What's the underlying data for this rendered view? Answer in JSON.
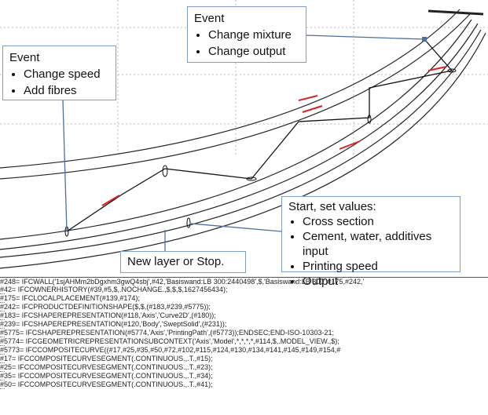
{
  "event_left": {
    "title": "Event",
    "items": [
      "Change speed",
      "Add fibres"
    ]
  },
  "event_top": {
    "title": "Event",
    "items": [
      "Change mixture",
      "Change output"
    ]
  },
  "start": {
    "title": "Start, set values:",
    "items": [
      "Cross section",
      "Cement, water, additives input",
      "Printing speed",
      "Output"
    ]
  },
  "new_layer": {
    "label": "New layer or Stop."
  },
  "code": {
    "lines": [
      "#248= IFCWALL('1sjAHMm2bDgxhm3gwQ4sbj',#42,'Basiswand:LB 300:2440498',$,'Basiswand:LB 300',#175,#242,'",
      "#42= IFCOWNERHISTORY(#39,#5,$,.NOCHANGE.,$,$,$,1627456434);",
      "#175= IFCLOCALPLACEMENT(#139,#174);",
      "#242= IFCPRODUCTDEFINITIONSHAPE($,$,(#183,#239,#5775));",
      "#183= IFCSHAPEREPRESENTATION(#118,'Axis','Curve2D',(#180));",
      "#239= IFCSHAPEREPRESENTATION(#120,'Body','SweptSolid',(#231));",
      "#5775= IFCSHAPEREPRESENTATION(#5774,'Axis','PrintingPath',(#5773));ENDSEC;END-ISO-10303-21;",
      "#5774= IFCGEOMETRICREPRESENTATIONSUBCONTEXT('Axis','Model',*,*,*,*,#114,$,.MODEL_VIEW.,$);",
      "#5773= IFCCOMPOSITECURVE((#17,#25,#35,#50,#72,#102,#115,#124,#130,#134,#141,#145,#149,#154,#",
      "#17= IFCCOMPOSITECURVESEGMENT(.CONTINUOUS.,.T.,#15);",
      "#25= IFCCOMPOSITECURVESEGMENT(.CONTINUOUS.,.T.,#23);",
      "#35= IFCCOMPOSITECURVESEGMENT(.CONTINUOUS.,.T.,#34);",
      "#50= IFCCOMPOSITECURVESEGMENT(.CONTINUOUS.,.T.,#41);"
    ]
  }
}
